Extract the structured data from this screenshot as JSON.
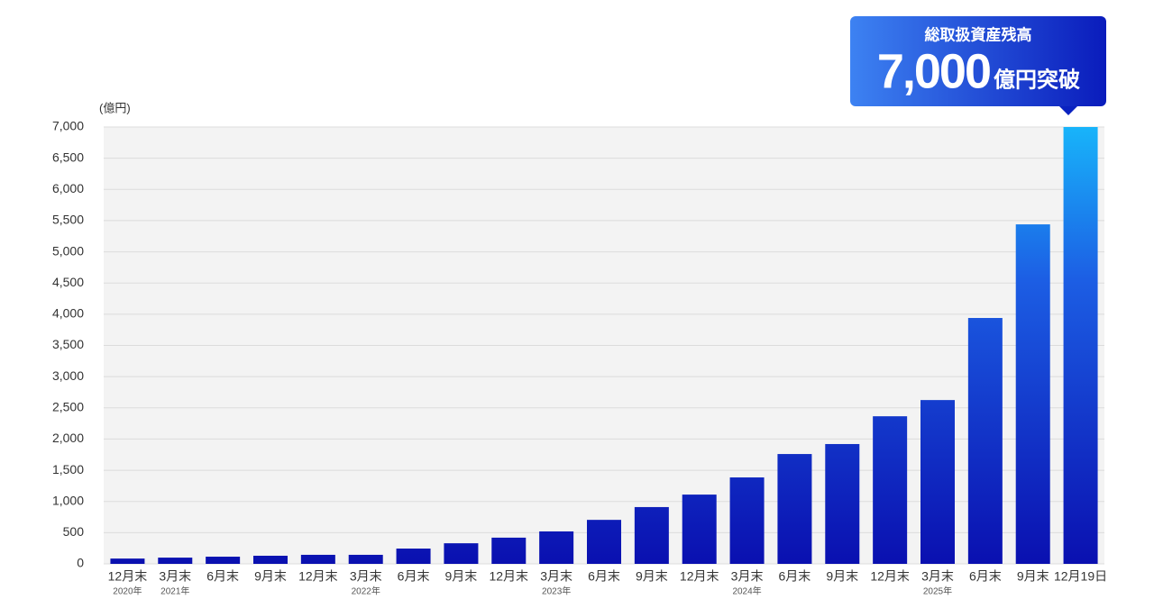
{
  "chart_data": {
    "type": "bar",
    "y_unit": "(億円)",
    "categories": [
      "12月末",
      "3月末",
      "6月末",
      "9月末",
      "12月末",
      "3月末",
      "6月末",
      "9月末",
      "12月末",
      "3月末",
      "6月末",
      "9月末",
      "12月末",
      "3月末",
      "6月末",
      "9月末",
      "12月末",
      "3月末",
      "6月末",
      "9月末",
      "12月19日"
    ],
    "category_years": [
      "2020年",
      "2021年",
      null,
      null,
      null,
      "2022年",
      null,
      null,
      null,
      "2023年",
      null,
      null,
      null,
      "2024年",
      null,
      null,
      null,
      "2025年",
      null,
      null,
      null
    ],
    "values": [
      85,
      100,
      115,
      130,
      145,
      145,
      245,
      330,
      420,
      520,
      705,
      910,
      1110,
      1385,
      1760,
      1920,
      2365,
      2625,
      3940,
      5440,
      7000
    ],
    "gradient": [
      "#18b4fa",
      "#1c5ee4",
      "#0a10b0"
    ],
    "ylim": [
      0,
      7000
    ],
    "yticks": [
      0,
      500,
      {
        "value": 1000,
        "label": "1,000"
      },
      {
        "value": 1500,
        "label": "1,500"
      },
      {
        "value": 2000,
        "label": "2,000"
      },
      {
        "value": 2500,
        "label": "2,500"
      },
      {
        "value": 3000,
        "label": "3,000"
      },
      {
        "value": 3500,
        "label": "3,500"
      },
      {
        "value": 4000,
        "label": "4,000"
      },
      {
        "value": 4500,
        "label": "4,500"
      },
      {
        "value": 5000,
        "label": "5,000"
      },
      {
        "value": 5500,
        "label": "5,500"
      },
      {
        "value": 6000,
        "label": "6,000"
      },
      {
        "value": 6500,
        "label": "6,500"
      },
      {
        "value": 7000,
        "label": "7,000"
      }
    ],
    "grid": true,
    "callout": {
      "title": "総取扱資産残高",
      "amount": "7,000",
      "suffix": "億円突破"
    }
  }
}
